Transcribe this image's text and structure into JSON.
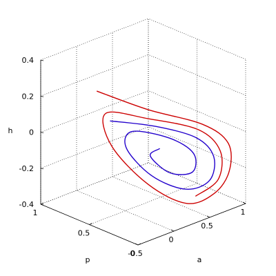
{
  "chart_data": {
    "type": "line",
    "subtype": "3d-trajectory",
    "xlabel": "a",
    "ylabel": "p",
    "zlabel": "h",
    "xlim": [
      -0.5,
      1
    ],
    "ylim": [
      0,
      1
    ],
    "zlim": [
      -0.4,
      0.4
    ],
    "x_ticks": [
      "-0.5",
      "0",
      "0.5",
      "1"
    ],
    "y_ticks": [
      "0",
      "0.5",
      "1"
    ],
    "z_ticks": [
      "-0.4",
      "-0.2",
      "0",
      "0.2",
      "0.4"
    ],
    "grid": true,
    "view": "3d box, azimuth -37.5, elevation 30",
    "series": [
      {
        "color": "#cc0000",
        "points": [
          [
            0.15,
            0.9,
            0.15
          ],
          [
            0.45,
            0.6,
            0.07
          ],
          [
            0.78,
            0.28,
            0.01
          ],
          [
            0.92,
            0.12,
            -0.08
          ],
          [
            0.88,
            0.08,
            -0.22
          ],
          [
            0.7,
            0.1,
            -0.32
          ],
          [
            0.45,
            0.2,
            -0.36
          ],
          [
            0.25,
            0.45,
            -0.28
          ],
          [
            0.15,
            0.75,
            -0.12
          ],
          [
            0.2,
            0.85,
            0.03
          ],
          [
            0.45,
            0.6,
            0.02
          ],
          [
            0.75,
            0.3,
            -0.02
          ],
          [
            0.85,
            0.15,
            -0.12
          ],
          [
            0.78,
            0.12,
            -0.26
          ],
          [
            0.55,
            0.18,
            -0.33
          ]
        ]
      },
      {
        "color": "#2200cc",
        "points": [
          [
            0.2,
            0.8,
            0.0
          ],
          [
            0.5,
            0.55,
            -0.02
          ],
          [
            0.72,
            0.3,
            -0.06
          ],
          [
            0.8,
            0.18,
            -0.15
          ],
          [
            0.7,
            0.15,
            -0.26
          ],
          [
            0.5,
            0.25,
            -0.3
          ],
          [
            0.3,
            0.45,
            -0.24
          ],
          [
            0.22,
            0.65,
            -0.12
          ],
          [
            0.3,
            0.65,
            -0.04
          ],
          [
            0.55,
            0.45,
            -0.07
          ],
          [
            0.68,
            0.3,
            -0.14
          ],
          [
            0.6,
            0.25,
            -0.22
          ],
          [
            0.42,
            0.35,
            -0.22
          ],
          [
            0.35,
            0.5,
            -0.15
          ],
          [
            0.45,
            0.48,
            -0.12
          ]
        ]
      }
    ]
  }
}
